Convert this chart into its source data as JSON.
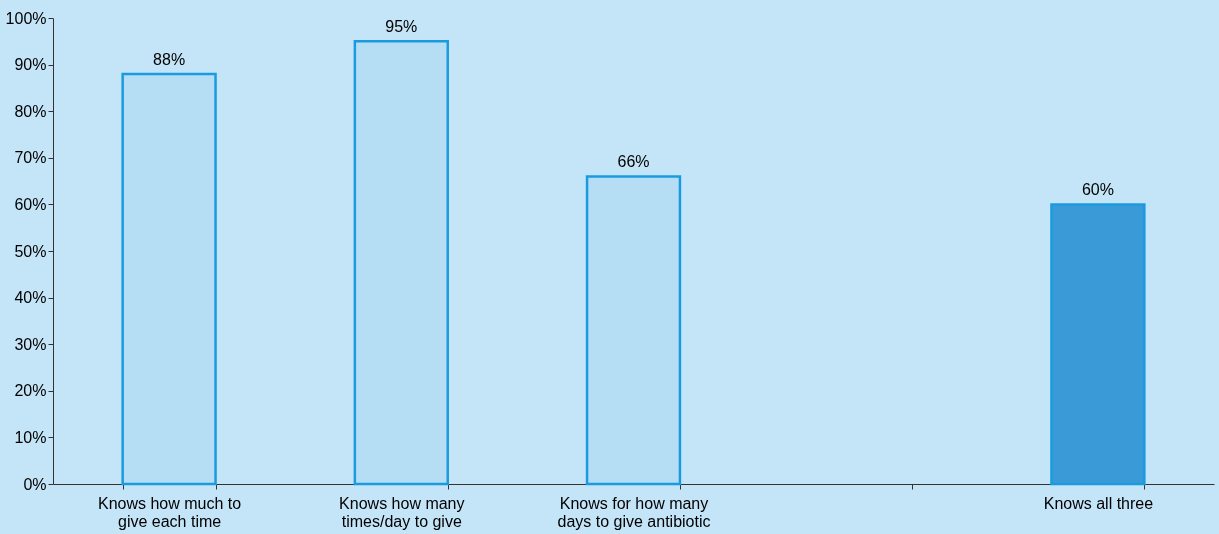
{
  "chart_data": {
    "type": "bar",
    "categories": [
      "Knows how much to give each time",
      "Knows how many times/day to give",
      "Knows for how many days to give antibiotic",
      null,
      "Knows all three"
    ],
    "values": [
      88,
      95,
      66,
      null,
      60
    ],
    "value_labels": [
      "88%",
      "95%",
      "66%",
      null,
      "60%"
    ],
    "colors": [
      "#b5def5",
      "#b5def5",
      "#b5def5",
      null,
      "#3a9ad8"
    ],
    "ylim": [
      0,
      100
    ],
    "yticks": [
      {
        "value": 0,
        "label": "0%"
      },
      {
        "value": 10,
        "label": "10%"
      },
      {
        "value": 20,
        "label": "20%"
      },
      {
        "value": 30,
        "label": "30%"
      },
      {
        "value": 40,
        "label": "40%"
      },
      {
        "value": 50,
        "label": "50%"
      },
      {
        "value": 60,
        "label": "60%"
      },
      {
        "value": 70,
        "label": "70%"
      },
      {
        "value": 80,
        "label": "80%"
      },
      {
        "value": 90,
        "label": "90%"
      },
      {
        "value": 100,
        "label": "100%"
      }
    ],
    "grid": false
  }
}
